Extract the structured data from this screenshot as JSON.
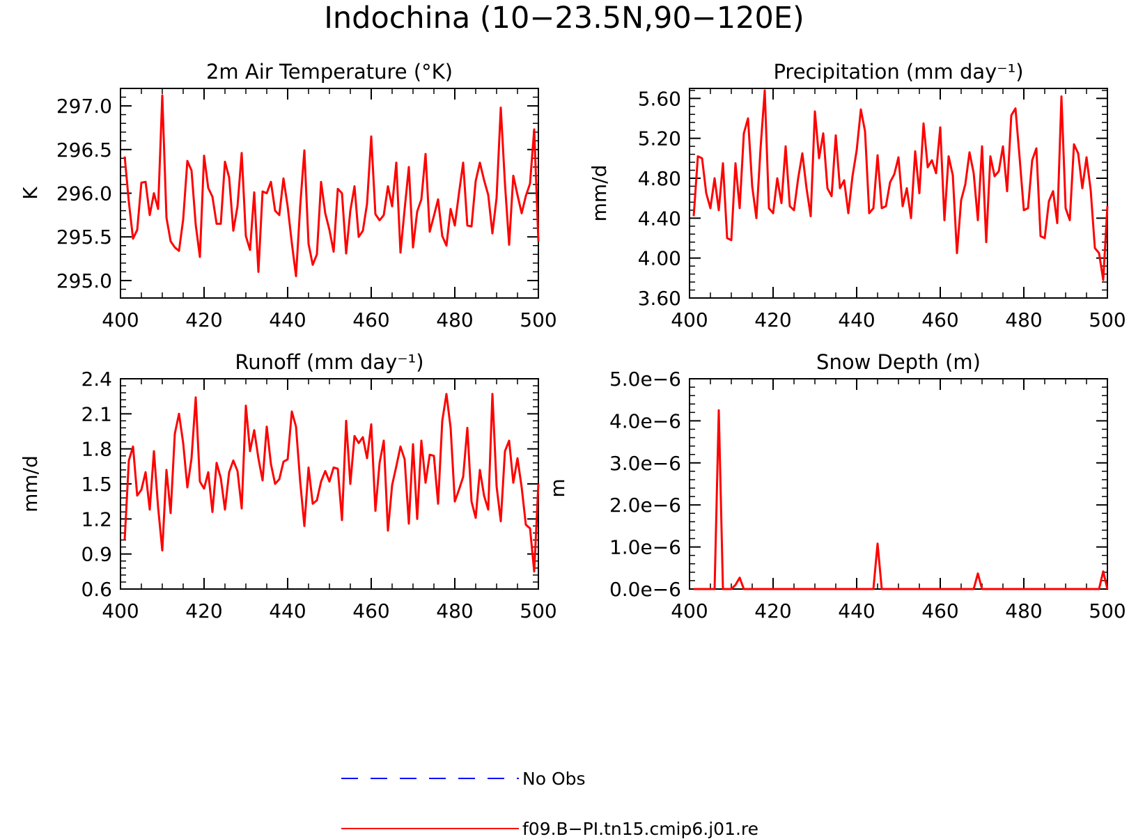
{
  "title": "Indochina (10−23.5N,90−120E)",
  "legend": {
    "items": [
      {
        "label": "No Obs",
        "color": "#0000ff",
        "style": "dashed"
      },
      {
        "label": "f09.B−PI.tn15.cmip6.j01.re",
        "color": "#ff0000",
        "style": "solid"
      }
    ]
  },
  "chart_data": [
    {
      "type": "line",
      "title": "2m Air Temperature (°K)",
      "ylabel": "K",
      "xlim": [
        400,
        500
      ],
      "ylim": [
        294.8,
        297.2
      ],
      "xticks": [
        400,
        420,
        440,
        460,
        480,
        500
      ],
      "xtick_labels": [
        "400",
        "420",
        "440",
        "460",
        "480",
        "500"
      ],
      "yticks": [
        297.0,
        296.5,
        296.0,
        295.5,
        295.0
      ],
      "ytick_labels": [
        "297.0",
        "296.5",
        "296.0",
        "295.5",
        "295.0"
      ],
      "grid": false,
      "series": [
        {
          "color": "#ff0000",
          "x_start": 401,
          "x_step": 1,
          "values": [
            296.42,
            295.9,
            295.48,
            295.58,
            296.12,
            296.13,
            295.75,
            296.0,
            295.82,
            297.12,
            295.72,
            295.45,
            295.38,
            295.34,
            295.7,
            296.37,
            296.26,
            295.64,
            295.27,
            296.43,
            296.06,
            295.96,
            295.65,
            295.65,
            296.36,
            296.18,
            295.57,
            295.85,
            296.46,
            295.51,
            295.35,
            296.01,
            295.1,
            296.02,
            296.0,
            296.13,
            295.8,
            295.75,
            296.17,
            295.85,
            295.43,
            295.05,
            295.85,
            296.49,
            295.42,
            295.18,
            295.3,
            296.13,
            295.77,
            295.58,
            295.33,
            296.05,
            296.0,
            295.31,
            295.8,
            296.08,
            295.5,
            295.57,
            295.88,
            296.65,
            295.76,
            295.69,
            295.75,
            296.08,
            295.85,
            296.35,
            295.32,
            295.82,
            296.3,
            295.38,
            295.79,
            295.93,
            296.45,
            295.56,
            295.74,
            295.93,
            295.51,
            295.4,
            295.82,
            295.63,
            296.0,
            296.35,
            295.63,
            295.62,
            296.14,
            296.35,
            296.15,
            295.98,
            295.54,
            295.95,
            296.98,
            296.11,
            295.41,
            296.2,
            295.98,
            295.77,
            295.97,
            296.11,
            296.73,
            295.45
          ]
        }
      ]
    },
    {
      "type": "line",
      "title": "Precipitation (mm day⁻¹)",
      "ylabel": "mm/d",
      "xlim": [
        400,
        500
      ],
      "ylim": [
        3.6,
        5.7
      ],
      "xticks": [
        400,
        420,
        440,
        460,
        480,
        500
      ],
      "xtick_labels": [
        "400",
        "420",
        "440",
        "460",
        "480",
        "500"
      ],
      "yticks": [
        5.6,
        5.2,
        4.8,
        4.4,
        4.0,
        3.6
      ],
      "ytick_labels": [
        "5.60",
        "5.20",
        "4.80",
        "4.40",
        "4.00",
        "3.60"
      ],
      "grid": false,
      "series": [
        {
          "color": "#ff0000",
          "x_start": 401,
          "x_step": 1,
          "values": [
            4.42,
            5.02,
            5.0,
            4.65,
            4.5,
            4.8,
            4.48,
            4.95,
            4.2,
            4.18,
            4.95,
            4.5,
            5.25,
            5.4,
            4.72,
            4.4,
            5.1,
            5.68,
            4.5,
            4.45,
            4.8,
            4.55,
            5.12,
            4.52,
            4.48,
            4.8,
            5.05,
            4.7,
            4.42,
            5.47,
            5.0,
            5.25,
            4.7,
            4.62,
            5.23,
            4.7,
            4.78,
            4.45,
            4.82,
            5.08,
            5.49,
            5.27,
            4.45,
            4.5,
            5.03,
            4.5,
            4.52,
            4.76,
            4.84,
            5.01,
            4.52,
            4.7,
            4.4,
            5.07,
            4.65,
            5.35,
            4.91,
            4.98,
            4.85,
            5.31,
            4.38,
            5.02,
            4.83,
            4.05,
            4.58,
            4.74,
            5.06,
            4.85,
            4.38,
            5.12,
            4.16,
            5.02,
            4.82,
            4.87,
            5.12,
            4.67,
            5.43,
            5.5,
            5.0,
            4.48,
            4.5,
            4.98,
            5.1,
            4.22,
            4.2,
            4.57,
            4.67,
            4.35,
            5.62,
            4.5,
            4.38,
            5.14,
            5.05,
            4.7,
            5.01,
            4.68,
            4.1,
            4.05,
            3.78,
            4.52
          ]
        }
      ]
    },
    {
      "type": "line",
      "title": "Runoff (mm day⁻¹)",
      "ylabel": "mm/d",
      "xlim": [
        400,
        500
      ],
      "ylim": [
        0.6,
        2.4
      ],
      "xticks": [
        400,
        420,
        440,
        460,
        480,
        500
      ],
      "xtick_labels": [
        "400",
        "420",
        "440",
        "460",
        "480",
        "500"
      ],
      "yticks": [
        2.4,
        2.1,
        1.8,
        1.5,
        1.2,
        0.9,
        0.6
      ],
      "ytick_labels": [
        "2.4",
        "2.1",
        "1.8",
        "1.5",
        "1.2",
        "0.9",
        "0.6"
      ],
      "grid": false,
      "series": [
        {
          "color": "#ff0000",
          "x_start": 401,
          "x_step": 1,
          "values": [
            1.02,
            1.7,
            1.82,
            1.4,
            1.45,
            1.6,
            1.28,
            1.78,
            1.3,
            0.93,
            1.62,
            1.25,
            1.93,
            2.1,
            1.85,
            1.47,
            1.72,
            2.24,
            1.52,
            1.46,
            1.6,
            1.26,
            1.68,
            1.55,
            1.28,
            1.6,
            1.7,
            1.61,
            1.29,
            2.17,
            1.78,
            1.96,
            1.72,
            1.53,
            1.99,
            1.67,
            1.5,
            1.54,
            1.69,
            1.71,
            2.12,
            1.99,
            1.52,
            1.14,
            1.64,
            1.33,
            1.36,
            1.52,
            1.61,
            1.52,
            1.64,
            1.63,
            1.19,
            2.04,
            1.5,
            1.91,
            1.85,
            1.9,
            1.72,
            2.01,
            1.27,
            1.68,
            1.87,
            1.1,
            1.49,
            1.65,
            1.82,
            1.71,
            1.16,
            1.84,
            1.2,
            1.87,
            1.51,
            1.75,
            1.74,
            1.33,
            2.04,
            2.27,
            1.98,
            1.35,
            1.45,
            1.56,
            1.98,
            1.35,
            1.21,
            1.62,
            1.4,
            1.28,
            2.27,
            1.48,
            1.18,
            1.78,
            1.87,
            1.51,
            1.72,
            1.47,
            1.15,
            1.12,
            0.75,
            1.5
          ]
        }
      ]
    },
    {
      "type": "line",
      "title": "Snow Depth (m)",
      "ylabel": "m",
      "xlim": [
        400,
        500
      ],
      "ylim": [
        0,
        5e-06
      ],
      "xticks": [
        400,
        420,
        440,
        460,
        480,
        500
      ],
      "xtick_labels": [
        "400",
        "420",
        "440",
        "460",
        "480",
        "500"
      ],
      "yticks": [
        5e-06,
        4e-06,
        3e-06,
        2e-06,
        1e-06,
        0.0
      ],
      "ytick_labels": [
        "5.0e−6",
        "4.0e−6",
        "3.0e−6",
        "2.0e−6",
        "1.0e−6",
        "0.0e−6"
      ],
      "grid": false,
      "series": [
        {
          "color": "#ff0000",
          "x_start": 401,
          "x_step": 1,
          "values": [
            0,
            0,
            0,
            0,
            0,
            0,
            4.25e-06,
            0,
            0,
            0,
            1e-07,
            2.7e-07,
            0,
            0,
            0,
            0,
            0,
            0,
            0,
            0,
            0,
            0,
            0,
            0,
            0,
            0,
            0,
            0,
            0,
            0,
            0,
            0,
            0,
            0,
            0,
            0,
            0,
            0,
            0,
            0,
            0,
            0,
            0,
            0,
            1.08e-06,
            0,
            0,
            0,
            0,
            0,
            0,
            0,
            0,
            0,
            0,
            0,
            0,
            0,
            0,
            0,
            0,
            0,
            0,
            0,
            0,
            0,
            0,
            0,
            3.7e-07,
            0,
            0,
            0,
            0,
            0,
            0,
            0,
            0,
            0,
            0,
            0,
            0,
            0,
            0,
            0,
            0,
            0,
            0,
            0,
            0,
            0,
            0,
            0,
            0,
            0,
            0,
            0,
            0,
            0,
            4.2e-07,
            0
          ]
        }
      ]
    }
  ]
}
